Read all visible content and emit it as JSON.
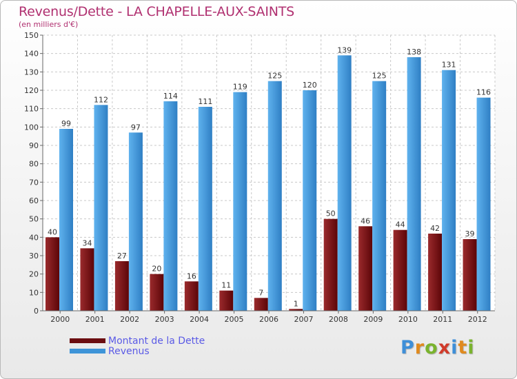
{
  "chart_data": {
    "type": "bar",
    "title": "Revenus/Dette - LA CHAPELLE-AUX-SAINTS",
    "subtitle": "(en milliers d'€)",
    "categories": [
      "2000",
      "2001",
      "2002",
      "2003",
      "2004",
      "2005",
      "2006",
      "2007",
      "2008",
      "2009",
      "2010",
      "2011",
      "2012"
    ],
    "series": [
      {
        "name": "Montant de la Dette",
        "color": "#6b0d10",
        "values": [
          40,
          34,
          27,
          20,
          16,
          11,
          7,
          1,
          50,
          46,
          44,
          42,
          39
        ]
      },
      {
        "name": "Revenus",
        "color": "#3e94d8",
        "values": [
          99,
          112,
          97,
          114,
          111,
          119,
          125,
          120,
          139,
          125,
          138,
          131,
          116
        ]
      }
    ],
    "ylim": [
      0,
      150
    ],
    "yticks": [
      0,
      10,
      20,
      30,
      40,
      50,
      60,
      70,
      80,
      90,
      100,
      110,
      120,
      130,
      140,
      150
    ],
    "grid": true,
    "legend_position": "bottom-left"
  },
  "logo": {
    "text": "Proxiti",
    "letters": [
      "P",
      "r",
      "o",
      "x",
      "i",
      "t",
      "i"
    ],
    "colors": [
      "#3e8fd8",
      "#e08a1e",
      "#7ab32e",
      "#d13b2b",
      "#3e8fd8",
      "#e08a1e",
      "#7ab32e"
    ]
  }
}
